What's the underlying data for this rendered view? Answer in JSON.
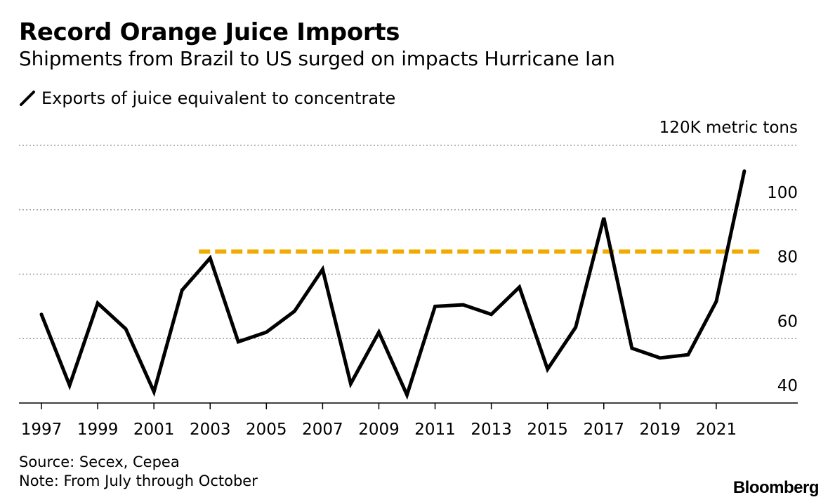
{
  "title": "Record Orange Juice Imports",
  "subtitle": "Shipments from Brazil to US surged on impacts Hurricane Ian",
  "legend_label": "Exports of juice equivalent to concentrate",
  "unit_label": "120K metric tons",
  "source": "Source: Secex, Cepea",
  "note": "Note: From July through October",
  "brand": "Bloomberg",
  "colors": {
    "series": "#000000",
    "reference": "#f0ab00",
    "grid": "#a0a0a0"
  },
  "chart_data": {
    "type": "line",
    "x": [
      1997,
      1998,
      1999,
      2000,
      2001,
      2002,
      2003,
      2004,
      2005,
      2006,
      2007,
      2008,
      2009,
      2010,
      2011,
      2012,
      2013,
      2014,
      2015,
      2016,
      2017,
      2018,
      2019,
      2020,
      2021,
      2022
    ],
    "series": [
      {
        "values": [
          67.5,
          45.5,
          71,
          63,
          43.5,
          75,
          85,
          59,
          62,
          68.5,
          81.5,
          46,
          62,
          42.5,
          70,
          70.5,
          67.5,
          76,
          50.5,
          63.5,
          97.5,
          57,
          54,
          55,
          71.5,
          112
        ]
      }
    ],
    "reference_line": {
      "value": 87,
      "x_start": 2002.6,
      "x_end": 2022.6
    },
    "ylim": [
      40,
      120
    ],
    "xlim": [
      1996.2,
      2023.9
    ],
    "y_ticks": [
      40,
      60,
      80,
      100
    ],
    "y_tick_labels": [
      "40",
      "60",
      "80",
      "100"
    ],
    "x_ticks": [
      1997,
      1999,
      2001,
      2003,
      2005,
      2007,
      2009,
      2011,
      2013,
      2015,
      2017,
      2019,
      2021
    ],
    "x_tick_labels": [
      "1997",
      "1999",
      "2001",
      "2003",
      "2005",
      "2007",
      "2009",
      "2011",
      "2013",
      "2015",
      "2017",
      "2019",
      "2021"
    ],
    "grid": true
  }
}
